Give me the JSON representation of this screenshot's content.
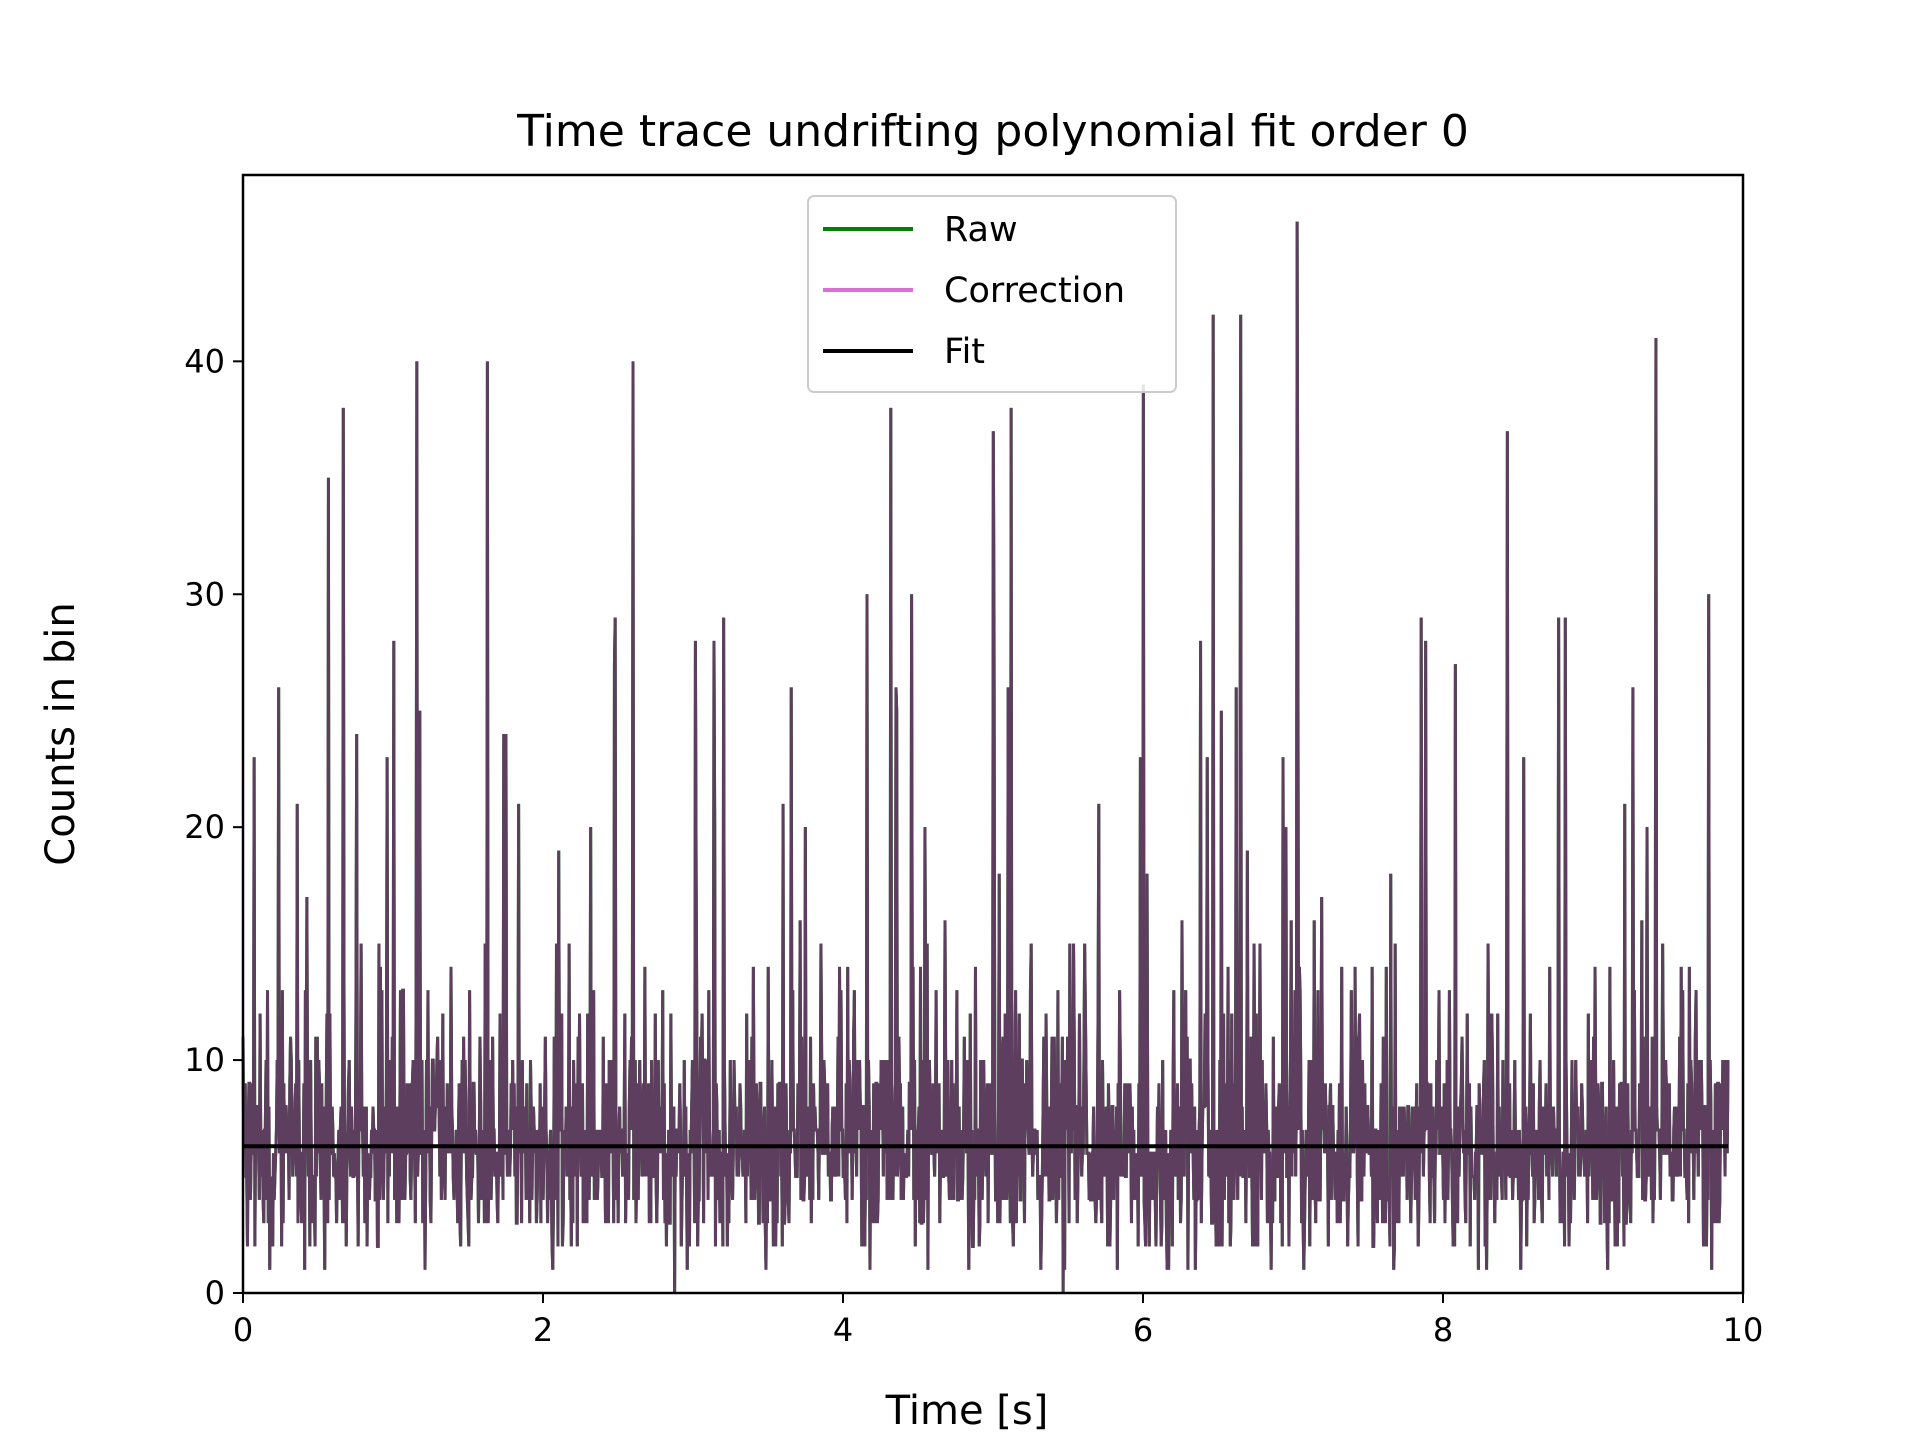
{
  "chart_data": {
    "type": "line",
    "title": "Time trace undrifting polynomial fit order 0",
    "xlabel": "Time [s]",
    "ylabel": "Counts in bin",
    "xlim": [
      0,
      10
    ],
    "ylim": [
      0,
      48
    ],
    "xticks": [
      0,
      2,
      4,
      6,
      8,
      10
    ],
    "yticks": [
      0,
      10,
      20,
      30,
      40
    ],
    "grid": false,
    "legend_position": "top-center",
    "series": [
      {
        "name": "Raw",
        "color": "#008000",
        "samples": 2000,
        "sampling": "random counts, mean approx 6.3, range 0 to 46, t from 0 to 9.9 s",
        "peaks": [
          {
            "x": 0.57,
            "y": 35
          },
          {
            "x": 0.67,
            "y": 38
          },
          {
            "x": 1.16,
            "y": 40
          },
          {
            "x": 1.63,
            "y": 40
          },
          {
            "x": 2.6,
            "y": 40
          },
          {
            "x": 4.32,
            "y": 38
          },
          {
            "x": 5.0,
            "y": 37
          },
          {
            "x": 5.12,
            "y": 38
          },
          {
            "x": 6.0,
            "y": 39
          },
          {
            "x": 6.47,
            "y": 42
          },
          {
            "x": 6.65,
            "y": 42
          },
          {
            "x": 7.03,
            "y": 46
          },
          {
            "x": 8.43,
            "y": 37
          },
          {
            "x": 9.42,
            "y": 41
          }
        ]
      },
      {
        "name": "Correction",
        "color": "#da70d6",
        "note": "identical to Raw after subtracting order-0 fit offset"
      },
      {
        "name": "Fit",
        "color": "#000000",
        "x": [
          0,
          9.9
        ],
        "y": [
          6.3,
          6.3
        ]
      }
    ],
    "overlay_color": "#5d3e5e"
  }
}
